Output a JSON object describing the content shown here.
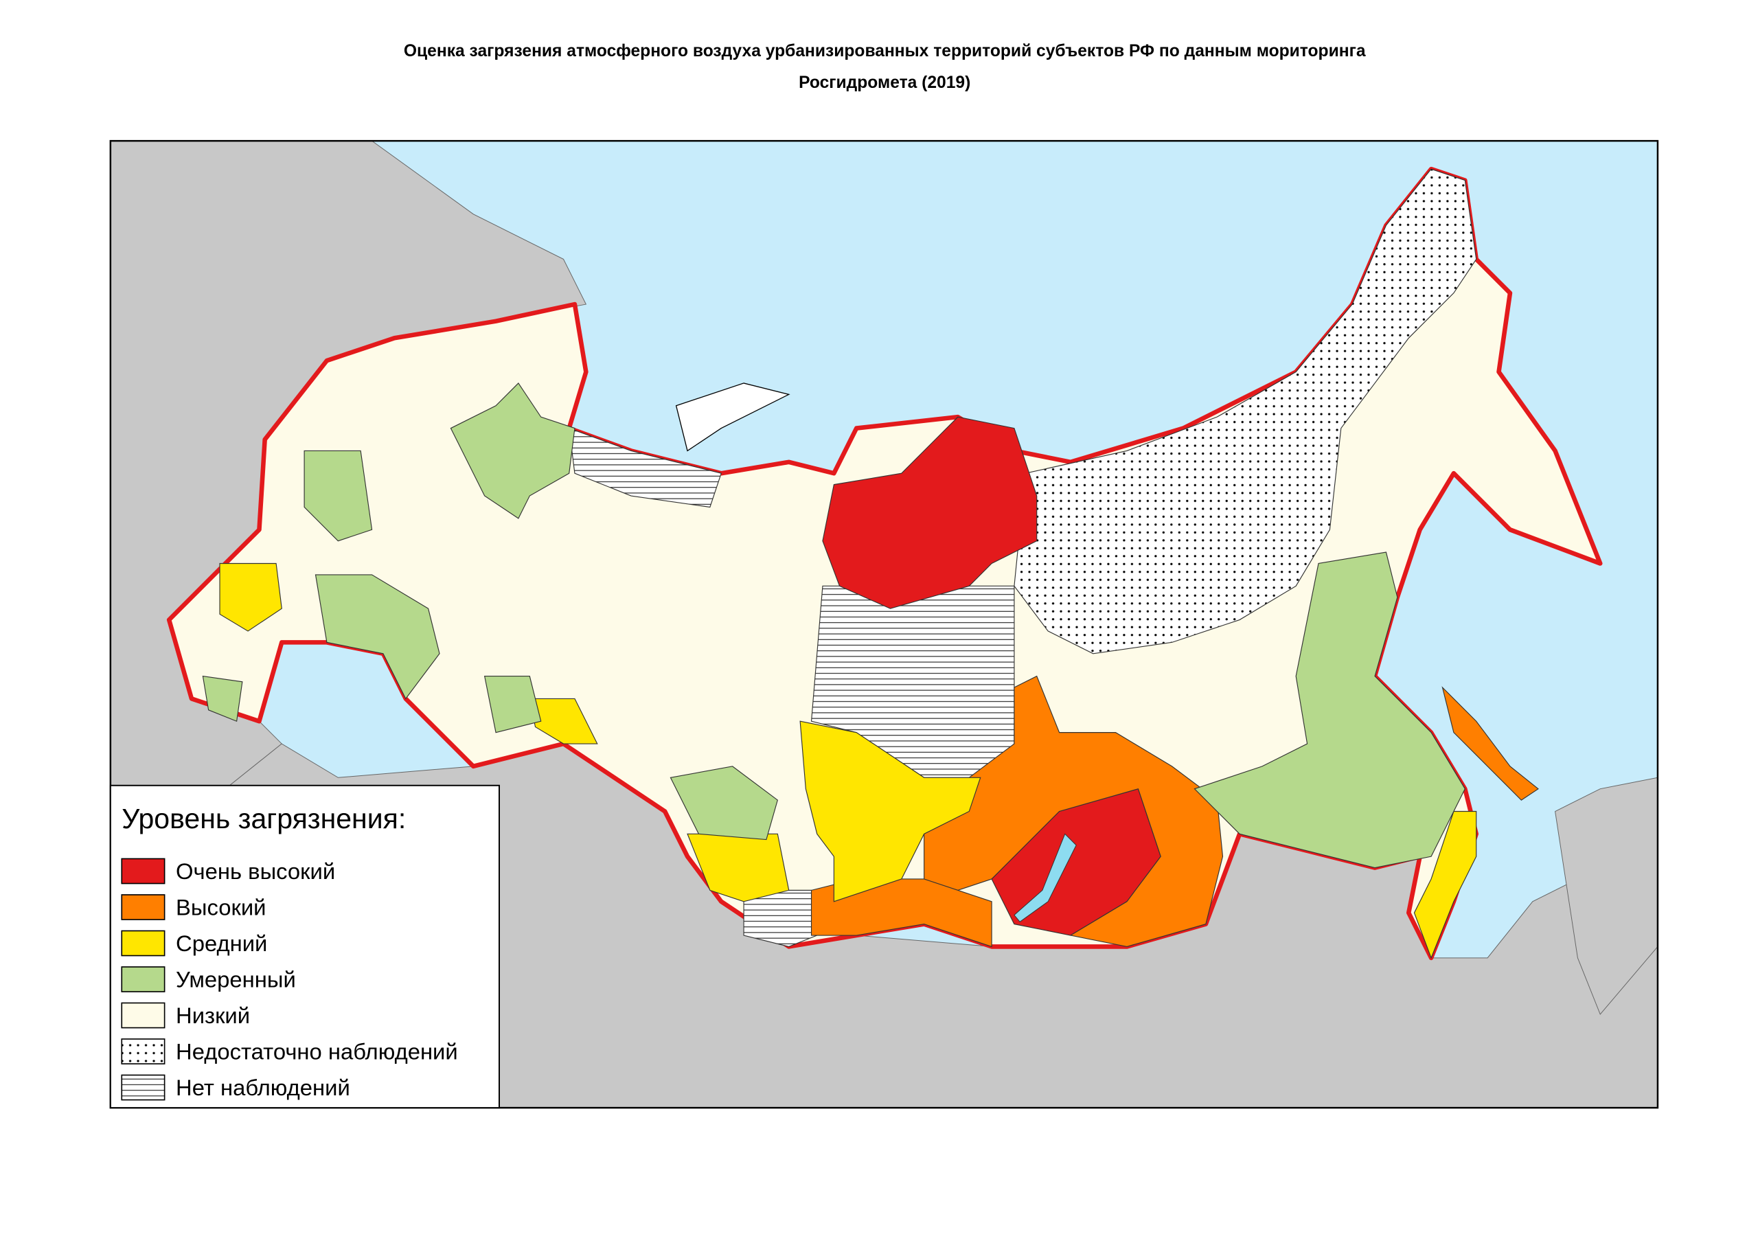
{
  "title_lines": [
    "Оценка загрязения атмосферного воздуха урбанизированных территорий субъектов РФ по данным мориторинга",
    "Росгидромета (2019)"
  ],
  "legend": {
    "title": "Уровень загрязнения:",
    "items": [
      {
        "label": "Очень высокий",
        "color": "#e31a1c"
      },
      {
        "label": "Высокий",
        "color": "#ff7f00"
      },
      {
        "label": "Средний",
        "color": "#ffe600"
      },
      {
        "label": "Умеренный",
        "color": "#b5d98c"
      },
      {
        "label": "Низкий",
        "color": "#fefbe8"
      },
      {
        "label": "Недостаточно наблюдений",
        "color": "#ffffff",
        "pattern": "dots"
      },
      {
        "label": "Нет наблюдений",
        "color": "#ffffff",
        "pattern": "hlines"
      }
    ]
  }
}
